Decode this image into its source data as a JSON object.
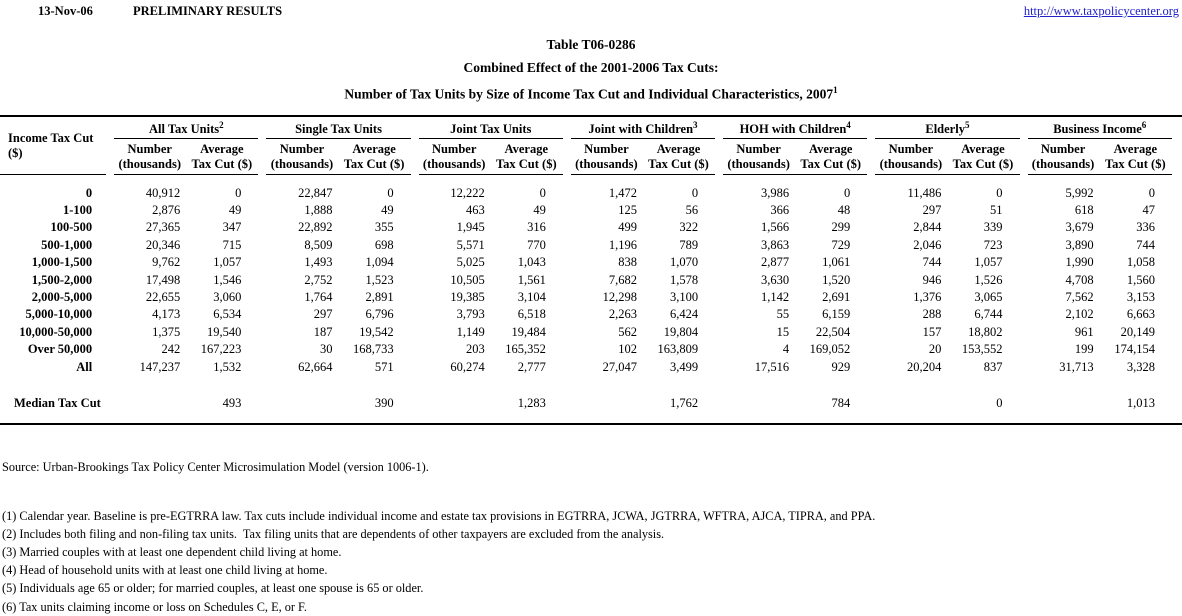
{
  "header": {
    "date": "13-Nov-06",
    "status": "PRELIMINARY RESULTS",
    "link": "http://www.taxpolicycenter.org"
  },
  "title": {
    "line1": "Table T06-0286",
    "line2": "Combined Effect of the 2001-2006 Tax Cuts:",
    "line3": "Number of Tax Units by Size of Income Tax Cut and Individual Characteristics, 2007",
    "line3_sup": "1"
  },
  "colors": {
    "link": "#2222cc",
    "text": "#000000",
    "background": "#ffffff"
  },
  "chart_data": {
    "type": "table",
    "row_header": "Income Tax Cut ($)",
    "subcolumns": {
      "number_line1": "Number",
      "number_line2": "(thousands)",
      "average_line1": "Average",
      "average_line2": "Tax Cut ($)"
    },
    "groups": [
      {
        "id": "all-tax-units",
        "label": "All Tax Units",
        "sup": "2"
      },
      {
        "id": "single-tax-units",
        "label": "Single Tax Units",
        "sup": ""
      },
      {
        "id": "joint-tax-units",
        "label": "Joint Tax Units",
        "sup": ""
      },
      {
        "id": "joint-with-children",
        "label": "Joint with Children",
        "sup": "3"
      },
      {
        "id": "hoh-with-children",
        "label": "HOH with Children",
        "sup": "4"
      },
      {
        "id": "elderly",
        "label": "Elderly",
        "sup": "5"
      },
      {
        "id": "business-income",
        "label": "Business Income",
        "sup": "6"
      }
    ],
    "rows": [
      {
        "label": "0",
        "values": [
          "40,912",
          "0",
          "22,847",
          "0",
          "12,222",
          "0",
          "1,472",
          "0",
          "3,986",
          "0",
          "11,486",
          "0",
          "5,992",
          "0"
        ]
      },
      {
        "label": "1-100",
        "values": [
          "2,876",
          "49",
          "1,888",
          "49",
          "463",
          "49",
          "125",
          "56",
          "366",
          "48",
          "297",
          "51",
          "618",
          "47"
        ]
      },
      {
        "label": "100-500",
        "values": [
          "27,365",
          "347",
          "22,892",
          "355",
          "1,945",
          "316",
          "499",
          "322",
          "1,566",
          "299",
          "2,844",
          "339",
          "3,679",
          "336"
        ]
      },
      {
        "label": "500-1,000",
        "values": [
          "20,346",
          "715",
          "8,509",
          "698",
          "5,571",
          "770",
          "1,196",
          "789",
          "3,863",
          "729",
          "2,046",
          "723",
          "3,890",
          "744"
        ]
      },
      {
        "label": "1,000-1,500",
        "values": [
          "9,762",
          "1,057",
          "1,493",
          "1,094",
          "5,025",
          "1,043",
          "838",
          "1,070",
          "2,877",
          "1,061",
          "744",
          "1,057",
          "1,990",
          "1,058"
        ]
      },
      {
        "label": "1,500-2,000",
        "values": [
          "17,498",
          "1,546",
          "2,752",
          "1,523",
          "10,505",
          "1,561",
          "7,682",
          "1,578",
          "3,630",
          "1,520",
          "946",
          "1,526",
          "4,708",
          "1,560"
        ]
      },
      {
        "label": "2,000-5,000",
        "values": [
          "22,655",
          "3,060",
          "1,764",
          "2,891",
          "19,385",
          "3,104",
          "12,298",
          "3,100",
          "1,142",
          "2,691",
          "1,376",
          "3,065",
          "7,562",
          "3,153"
        ]
      },
      {
        "label": "5,000-10,000",
        "values": [
          "4,173",
          "6,534",
          "297",
          "6,796",
          "3,793",
          "6,518",
          "2,263",
          "6,424",
          "55",
          "6,159",
          "288",
          "6,744",
          "2,102",
          "6,663"
        ]
      },
      {
        "label": "10,000-50,000",
        "values": [
          "1,375",
          "19,540",
          "187",
          "19,542",
          "1,149",
          "19,484",
          "562",
          "19,804",
          "15",
          "22,504",
          "157",
          "18,802",
          "961",
          "20,149"
        ]
      },
      {
        "label": "Over 50,000",
        "values": [
          "242",
          "167,223",
          "30",
          "168,733",
          "203",
          "165,352",
          "102",
          "163,809",
          "4",
          "169,052",
          "20",
          "153,552",
          "199",
          "174,154"
        ]
      },
      {
        "label": "All",
        "values": [
          "147,237",
          "1,532",
          "62,664",
          "571",
          "60,274",
          "2,777",
          "27,047",
          "3,499",
          "17,516",
          "929",
          "20,204",
          "837",
          "31,713",
          "3,328"
        ]
      }
    ],
    "median_row": {
      "label": "Median Tax Cut",
      "values": [
        "493",
        "390",
        "1,283",
        "1,762",
        "784",
        "0",
        "1,013"
      ]
    }
  },
  "footnotes": {
    "source": "Source: Urban-Brookings Tax Policy Center Microsimulation Model (version 1006-1).",
    "notes": [
      "(1) Calendar year. Baseline is pre-EGTRRA law. Tax cuts include individual income and estate tax provisions in EGTRRA, JCWA, JGTRRA, WFTRA, AJCA, TIPRA, and PPA.",
      "(2) Includes both filing and non-filing tax units.  Tax filing units that are dependents of other taxpayers are excluded from the analysis.",
      "(3) Married couples with at least one dependent child living at home.",
      "(4) Head of household units with at least one child living at home.",
      "(5) Individuals age 65 or older; for married couples, at least one spouse is 65 or older.",
      "(6) Tax units claiming income or loss on Schedules C, E, or F."
    ]
  }
}
